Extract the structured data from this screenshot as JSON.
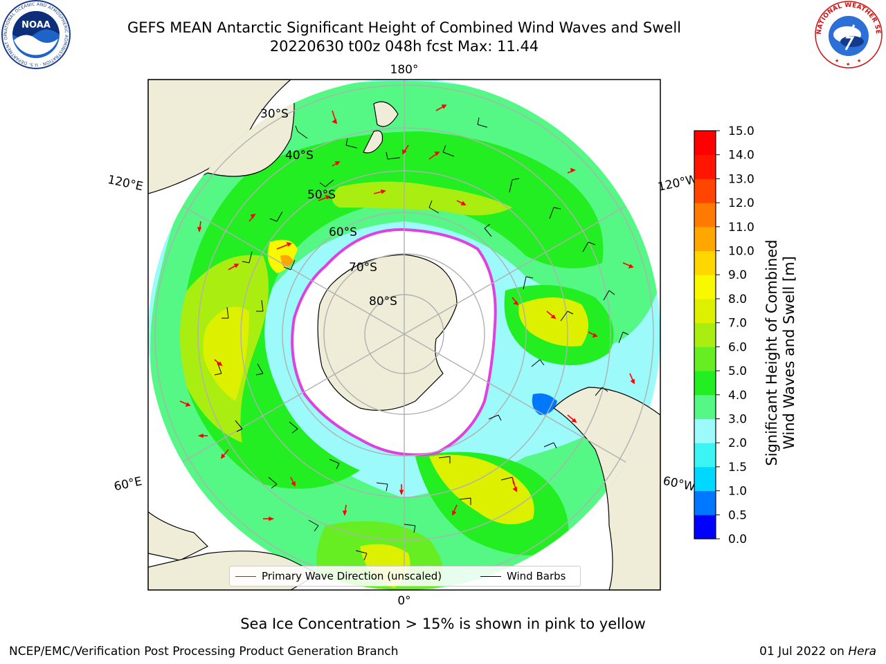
{
  "title_line1": "GEFS MEAN Antarctic Significant Height of Combined Wind Waves and Swell",
  "title_line2": "20220630 t00z 048h fcst   Max: 11.44",
  "caption": "Sea Ice Concentration > 15% is shown in pink to yellow",
  "footer_left": "NCEP/EMC/Verification Post Processing Product Generation Branch",
  "footer_right_date": "01 Jul 2022 on",
  "footer_right_machine": "Hera",
  "legend": {
    "wave_label": "Primary Wave Direction (unscaled)",
    "wave_color": "#ff0000",
    "barb_label": "Wind Barbs",
    "barb_color": "#000000"
  },
  "map_labels": {
    "lon_180": "180°",
    "lon_0": "0°",
    "lon_120e": "120°E",
    "lon_60e": "60°E",
    "lon_120w": "120°W",
    "lon_60w": "60°W",
    "lat_30s": "30°S",
    "lat_40s": "40°S",
    "lat_50s": "50°S",
    "lat_60s": "60°S",
    "lat_70s": "70°S",
    "lat_80s": "80°S"
  },
  "colorbar": {
    "title_line1": "Significant Height of Combined",
    "title_line2": "Wind Waves and Swell [m]",
    "ticks": [
      "0.0",
      "0.5",
      "1.0",
      "1.5",
      "2.0",
      "3.0",
      "4.0",
      "5.0",
      "6.0",
      "7.0",
      "8.0",
      "9.0",
      "10.0",
      "11.0",
      "12.0",
      "13.0",
      "14.0",
      "15.0"
    ],
    "colors": [
      "#0000ff",
      "#0077ff",
      "#00d8ff",
      "#3cf4f4",
      "#9cfafa",
      "#55f785",
      "#22ee22",
      "#66ee22",
      "#aaee11",
      "#ddf000",
      "#f8f800",
      "#ffd700",
      "#ffa600",
      "#ff7a00",
      "#ff4500",
      "#ff1500",
      "#ff0000"
    ]
  },
  "logos": {
    "noaa_text": "NOAA",
    "noaa_ring": "NATIONAL OCEANIC AND ATMOSPHERIC ADMINISTRATION · U.S. DEPARTMENT OF COMMERCE",
    "nws_ring": "NATIONAL WEATHER SERVICE"
  }
}
